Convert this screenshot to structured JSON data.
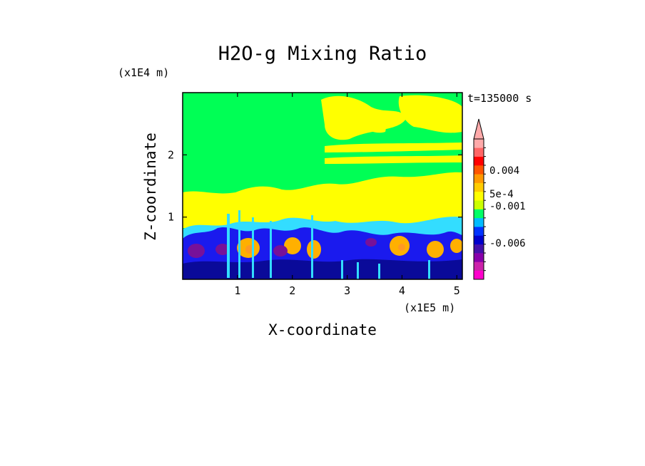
{
  "chart_data": {
    "type": "heatmap",
    "title": "H2O-g Mixing Ratio",
    "xlabel": "X-coordinate",
    "ylabel": "Z-coordinate",
    "x_unit": "(x1E5 m)",
    "y_unit": "(x1E4 m)",
    "time_label": "t=135000 s",
    "x_ticks": [
      "1",
      "2",
      "3",
      "4",
      "5"
    ],
    "y_ticks": [
      "1",
      "2"
    ],
    "x_tick_values": [
      1,
      2,
      3,
      4,
      5
    ],
    "y_tick_values": [
      1,
      2
    ],
    "xlim": [
      0,
      5.1
    ],
    "ylim": [
      0,
      3.0
    ],
    "colorbar": {
      "labels": [
        "0.004",
        "5e-4",
        "-0.001",
        "-0.006"
      ],
      "colors": [
        "#ff00cc",
        "#cc22aa",
        "#8800aa",
        "#4411aa",
        "#0000cc",
        "#0033ff",
        "#00bbff",
        "#00ff66",
        "#ccff00",
        "#ffff00",
        "#ffcc00",
        "#ff9900",
        "#ff5500",
        "#ff0000",
        "#ff6666",
        "#ffaaaa"
      ],
      "extend_top": true
    },
    "fields": {
      "background": "#00ff55",
      "upper_patches": "#ffff00",
      "mid_band": "#ffff00",
      "low_cyan": "#33ddff",
      "low_blue": "#1a1aee",
      "low_navy": "#0a0a99",
      "cores_purple": "#771199",
      "cores_orange": "#ffb000",
      "cores_light": "#ff9922"
    }
  }
}
